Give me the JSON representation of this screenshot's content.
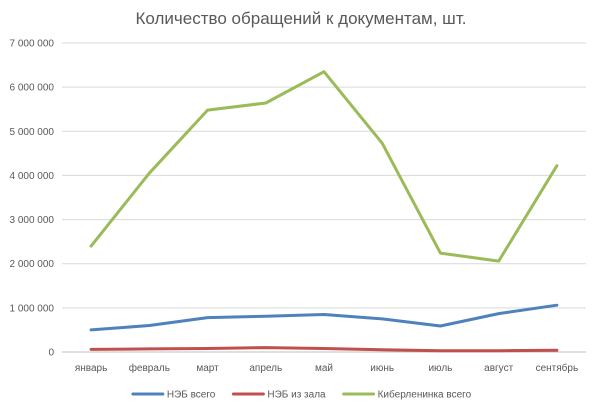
{
  "chart_data": {
    "type": "line",
    "title": "Количество обращений к документам, шт.",
    "xlabel": "",
    "ylabel": "",
    "categories": [
      "январь",
      "февраль",
      "март",
      "апрель",
      "май",
      "июнь",
      "июль",
      "август",
      "сентябрь"
    ],
    "ylim": [
      0,
      7000000
    ],
    "yticks": [
      {
        "value": 0,
        "label": "0"
      },
      {
        "value": 1000000,
        "label": "1 000 000"
      },
      {
        "value": 2000000,
        "label": "2 000 000"
      },
      {
        "value": 3000000,
        "label": "3 000 000"
      },
      {
        "value": 4000000,
        "label": "4 000 000"
      },
      {
        "value": 5000000,
        "label": "5 000 000"
      },
      {
        "value": 6000000,
        "label": "6 000 000"
      },
      {
        "value": 7000000,
        "label": "7 000 000"
      }
    ],
    "grid": true,
    "legend_position": "bottom",
    "series": [
      {
        "name": "НЭБ всего",
        "color": "#4F81BD",
        "values": [
          500000,
          600000,
          780000,
          810000,
          850000,
          750000,
          590000,
          870000,
          1060000
        ]
      },
      {
        "name": "НЭБ из зала",
        "color": "#C0504D",
        "values": [
          60000,
          70000,
          80000,
          100000,
          80000,
          50000,
          30000,
          30000,
          40000
        ]
      },
      {
        "name": "Киберленинка всего",
        "color": "#9BBB59",
        "values": [
          2400000,
          4050000,
          5480000,
          5640000,
          6350000,
          4730000,
          2240000,
          2060000,
          4220000
        ]
      }
    ]
  }
}
